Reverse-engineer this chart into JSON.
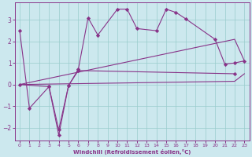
{
  "xlabel": "Windchill (Refroidissement éolien,°C)",
  "bg_color": "#cce8ee",
  "line_color": "#883388",
  "grid_color": "#99cccc",
  "xlim": [
    -0.5,
    23.5
  ],
  "ylim": [
    -2.6,
    3.8
  ],
  "xticks": [
    0,
    1,
    2,
    3,
    4,
    5,
    6,
    7,
    8,
    9,
    10,
    11,
    12,
    13,
    14,
    15,
    16,
    17,
    18,
    19,
    20,
    21,
    22,
    23
  ],
  "yticks": [
    -2,
    -1,
    0,
    1,
    2,
    3
  ],
  "line1_x": [
    0,
    1,
    3,
    4,
    5,
    6,
    7,
    8,
    10,
    11,
    12,
    14,
    15,
    16,
    17,
    20,
    21,
    22,
    23
  ],
  "line1_y": [
    2.5,
    -1.1,
    -0.1,
    -2.1,
    -0.05,
    0.7,
    3.1,
    2.3,
    3.5,
    3.5,
    2.6,
    2.5,
    3.5,
    3.35,
    3.05,
    2.1,
    0.95,
    1.0,
    1.1
  ],
  "line2_x": [
    0,
    3,
    4,
    5,
    6,
    22
  ],
  "line2_y": [
    0.0,
    -0.1,
    -2.35,
    -0.05,
    0.65,
    0.5
  ],
  "line3_x": [
    0,
    22,
    23
  ],
  "line3_y": [
    0.0,
    2.1,
    1.1
  ],
  "line4_x": [
    0,
    22,
    23
  ],
  "line4_y": [
    0.0,
    0.15,
    0.5
  ]
}
